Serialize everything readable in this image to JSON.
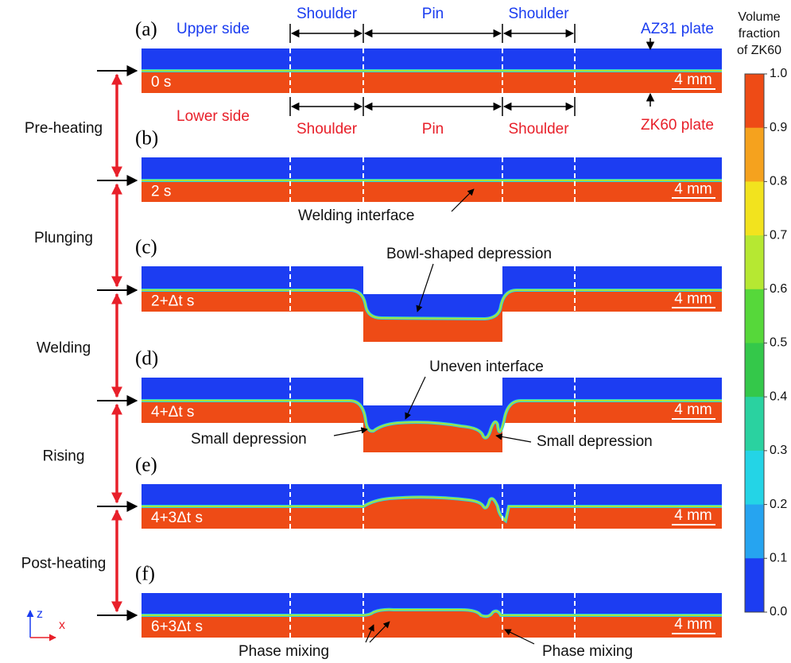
{
  "header": {
    "upper_side": "Upper side",
    "lower_side": "Lower side",
    "upper_regions": [
      "Shoulder",
      "Pin",
      "Shoulder"
    ],
    "lower_regions": [
      "Shoulder",
      "Pin",
      "Shoulder"
    ],
    "upper_plate": "AZ31 plate",
    "lower_plate": "ZK60 plate"
  },
  "panels": [
    {
      "label": "(a)",
      "time": "0 s",
      "scale": "4 mm"
    },
    {
      "label": "(b)",
      "time": "2 s",
      "scale": "4 mm"
    },
    {
      "label": "(c)",
      "time": "2+Δt s",
      "scale": "4 mm"
    },
    {
      "label": "(d)",
      "time": "4+Δt s",
      "scale": "4 mm"
    },
    {
      "label": "(e)",
      "time": "4+3Δt s",
      "scale": "4 mm"
    },
    {
      "label": "(f)",
      "time": "6+3Δt s",
      "scale": "4 mm"
    }
  ],
  "stages": [
    "Pre-heating",
    "Plunging",
    "Welding",
    "Rising",
    "Post-heating"
  ],
  "annotations": [
    "Welding interface",
    "Bowl-shaped depression",
    "Uneven interface",
    "Small depression",
    "Small depression",
    "Phase mixing",
    "Phase mixing"
  ],
  "colorbar": {
    "title": [
      "Volume",
      "fraction",
      "of ZK60"
    ],
    "ticks": [
      "1.0",
      "0.9",
      "0.8",
      "0.7",
      "0.6",
      "0.5",
      "0.4",
      "0.3",
      "0.2",
      "0.1",
      "0.0"
    ]
  },
  "axes": {
    "z": "z",
    "x": "x"
  }
}
